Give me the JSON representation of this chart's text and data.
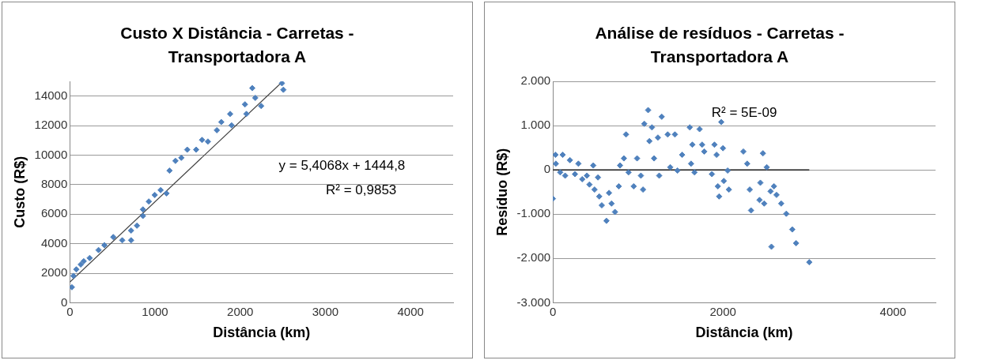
{
  "chart_data": [
    {
      "type": "scatter",
      "title": "Custo X Distância - Carretas - Transportadora  A",
      "xlabel": "Distância (km)",
      "ylabel": "Custo (R$)",
      "xlim": [
        0,
        4500
      ],
      "xticks": [
        0,
        1000,
        2000,
        3000,
        4000
      ],
      "ylim": [
        0,
        15000
      ],
      "yticks": [
        0,
        2000,
        4000,
        6000,
        8000,
        10000,
        12000,
        14000
      ],
      "grid": "y",
      "legend": false,
      "marker": "diamond",
      "annotations": [
        "y = 5,4068x + 1444,8",
        "R² = 0,9853"
      ],
      "series": [
        {
          "color": "#4f81bd",
          "x": [
            24,
            42,
            76,
            128,
            163,
            233,
            337,
            406,
            510,
            615,
            719,
            719,
            788,
            858,
            858,
            927,
            997,
            1066,
            1135,
            1170,
            1240,
            1309,
            1378,
            1483,
            1552,
            1621,
            1726,
            1778,
            1899,
            1882,
            2073,
            2056,
            2142,
            2177,
            2246,
            2490,
            2507
          ],
          "values": [
            1050,
            1820,
            2260,
            2590,
            2810,
            3030,
            3570,
            3900,
            4450,
            4230,
            4230,
            4890,
            5220,
            5880,
            6320,
            6860,
            7300,
            7630,
            7410,
            8950,
            9610,
            9820,
            10370,
            10370,
            11030,
            10920,
            11690,
            12240,
            12020,
            12790,
            12790,
            13440,
            14540,
            13880,
            13330,
            14870,
            14430
          ]
        },
        {
          "type": "line",
          "color": "#404040",
          "marker": "none",
          "x": [
            0,
            2500
          ],
          "values": [
            1400,
            15000
          ]
        }
      ]
    },
    {
      "type": "scatter",
      "title": "Análise de resíduos - Carretas - Transportadora  A",
      "xlabel": "Distância (km)",
      "ylabel": "Resíduo (R$)",
      "xlim": [
        0,
        4500
      ],
      "xticks": [
        0,
        2000,
        4000
      ],
      "ylim": [
        -3000,
        2000
      ],
      "yticks": [
        {
          "value": -3000,
          "label": "-3.000"
        },
        {
          "value": -2000,
          "label": "-2.000"
        },
        {
          "value": -1000,
          "label": "-1.000"
        },
        0,
        {
          "value": 1000,
          "label": "1.000"
        },
        {
          "value": 2000,
          "label": "2.000"
        }
      ],
      "grid": "y",
      "legend": false,
      "marker": "diamond",
      "annotations": [
        "R² = 5E-09"
      ],
      "series": [
        {
          "color": "#4f81bd",
          "x": [
            0,
            30,
            35,
            86,
            115,
            144,
            200,
            260,
            300,
            345,
            400,
            430,
            475,
            490,
            530,
            545,
            575,
            630,
            660,
            690,
            730,
            775,
            790,
            835,
            860,
            890,
            950,
            990,
            1035,
            1060,
            1075,
            1120,
            1135,
            1165,
            1190,
            1235,
            1250,
            1280,
            1350,
            1380,
            1435,
            1465,
            1520,
            1610,
            1625,
            1640,
            1665,
            1725,
            1755,
            1780,
            1870,
            1900,
            1925,
            1940,
            1955,
            1980,
            2000,
            2010,
            2055,
            2070,
            2240,
            2285,
            2315,
            2330,
            2440,
            2430,
            2470,
            2485,
            2515,
            2560,
            2570,
            2600,
            2630,
            2685,
            2745,
            2815,
            2860,
            3015
          ],
          "values": [
            -650,
            340,
            140,
            -55,
            340,
            -130,
            220,
            -95,
            140,
            -210,
            -130,
            -330,
            100,
            -445,
            -170,
            -600,
            -800,
            -1150,
            -520,
            -760,
            -950,
            -370,
            100,
            260,
            800,
            -55,
            -370,
            260,
            -130,
            -445,
            1040,
            1350,
            650,
            960,
            260,
            730,
            -130,
            1200,
            800,
            60,
            800,
            -15,
            340,
            960,
            140,
            570,
            -55,
            920,
            570,
            415,
            -95,
            570,
            340,
            -370,
            -600,
            1080,
            490,
            -250,
            -15,
            -445,
            415,
            140,
            -445,
            -915,
            -290,
            -680,
            375,
            -760,
            60,
            -485,
            -1735,
            -370,
            -565,
            -760,
            -990,
            -1345,
            -1655,
            -2085
          ]
        },
        {
          "type": "line",
          "color": "#000000",
          "marker": "none",
          "x": [
            0,
            3015
          ],
          "values": [
            0,
            0
          ]
        }
      ]
    }
  ]
}
